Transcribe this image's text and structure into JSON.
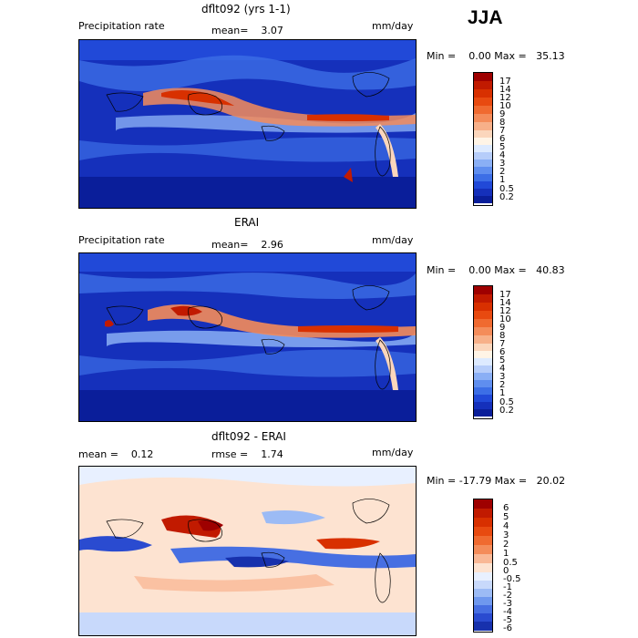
{
  "season": "JJA",
  "colors": {
    "precip_scale": [
      "#9e0000",
      "#c11a00",
      "#d83000",
      "#e84a10",
      "#f06a30",
      "#f48c5a",
      "#f7b089",
      "#fbd6bc",
      "#fff4e6",
      "#ddeaff",
      "#b6cdfa",
      "#8aaff5",
      "#5f8eef",
      "#3c6ee6",
      "#2149d8",
      "#1530bb",
      "#0a1e9a"
    ],
    "diff_scale": [
      "#9e0000",
      "#c11a00",
      "#d83000",
      "#e84a10",
      "#f06a30",
      "#f48c5a",
      "#f9b896",
      "#fde3d1",
      "#e8f0ff",
      "#c8d9fb",
      "#9cbbf5",
      "#6f98ee",
      "#476fe2",
      "#2a4bd0",
      "#1731ad"
    ]
  },
  "panels": [
    {
      "title": "dflt092 (yrs 1-1)",
      "left_label": "Precipitation rate",
      "stat1": "mean=    3.07",
      "stat2": "",
      "units": "mm/day",
      "minmax": "Min =    0.00 Max =   35.13",
      "cbar_labels": [
        "17",
        "14",
        "12",
        "10",
        "9",
        "8",
        "7",
        "6",
        "5",
        "4",
        "3",
        "2",
        "1",
        "0.5",
        "0.2"
      ]
    },
    {
      "title": "ERAI",
      "left_label": "Precipitation rate",
      "stat1": "mean=    2.96",
      "stat2": "",
      "units": "mm/day",
      "minmax": "Min =    0.00 Max =   40.83",
      "cbar_labels": [
        "17",
        "14",
        "12",
        "10",
        "9",
        "8",
        "7",
        "6",
        "5",
        "4",
        "3",
        "2",
        "1",
        "0.5",
        "0.2"
      ]
    },
    {
      "title": "dflt092 - ERAI",
      "left_label": "mean =    0.12",
      "stat1": "",
      "stat2": "rmse =    1.74",
      "units": "mm/day",
      "minmax": "Min = -17.79 Max =   20.02",
      "cbar_labels": [
        "6",
        "5",
        "4",
        "3",
        "2",
        "1",
        "0.5",
        "0",
        "-0.5",
        "-1",
        "-2",
        "-3",
        "-4",
        "-5",
        "-6"
      ]
    }
  ]
}
